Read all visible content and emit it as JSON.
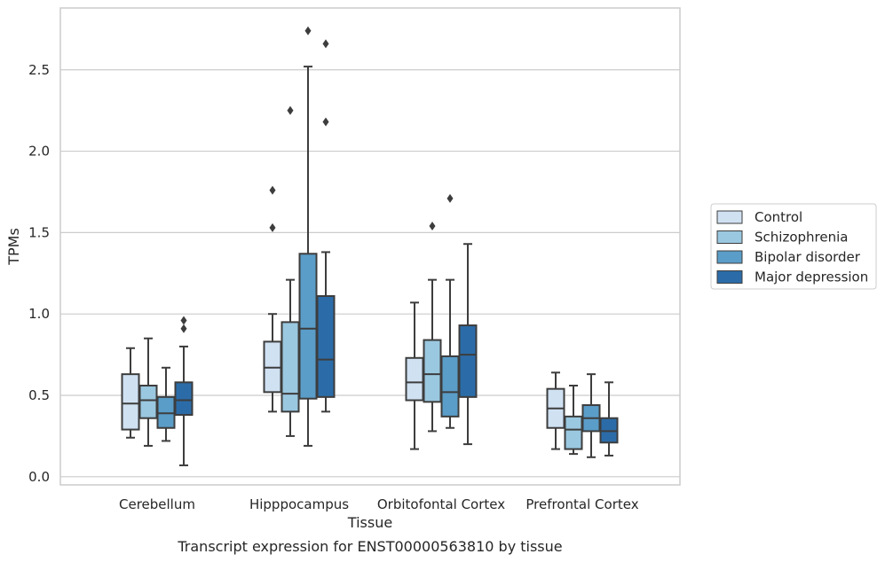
{
  "chart_data": {
    "type": "boxplot",
    "caption": "Transcript expression for ENST00000563810 by tissue",
    "xlabel": "Tissue",
    "ylabel": "TPMs",
    "categories": [
      "Cerebellum",
      "Hipppocampus",
      "Orbitofontal Cortex",
      "Prefrontal Cortex"
    ],
    "ylim": [
      -0.05,
      2.88
    ],
    "yticks": [
      0.0,
      0.5,
      1.0,
      1.5,
      2.0,
      2.5
    ],
    "ytick_labels": [
      "0.0",
      "0.5",
      "1.0",
      "1.5",
      "2.0",
      "2.5"
    ],
    "grid": "horizontal",
    "legend_position": "right-outside",
    "series": [
      {
        "name": "Control",
        "color": "#d0e1f2",
        "boxes": [
          {
            "whisker_low": 0.24,
            "q1": 0.29,
            "median": 0.45,
            "q3": 0.63,
            "whisker_high": 0.79,
            "outliers": []
          },
          {
            "whisker_low": 0.4,
            "q1": 0.52,
            "median": 0.67,
            "q3": 0.83,
            "whisker_high": 1.0,
            "outliers": [
              1.53,
              1.76
            ]
          },
          {
            "whisker_low": 0.17,
            "q1": 0.47,
            "median": 0.58,
            "q3": 0.73,
            "whisker_high": 1.07,
            "outliers": []
          },
          {
            "whisker_low": 0.17,
            "q1": 0.3,
            "median": 0.42,
            "q3": 0.54,
            "whisker_high": 0.64,
            "outliers": []
          }
        ]
      },
      {
        "name": "Schizophrenia",
        "color": "#9ac8e0",
        "boxes": [
          {
            "whisker_low": 0.19,
            "q1": 0.36,
            "median": 0.47,
            "q3": 0.56,
            "whisker_high": 0.85,
            "outliers": []
          },
          {
            "whisker_low": 0.25,
            "q1": 0.4,
            "median": 0.51,
            "q3": 0.95,
            "whisker_high": 1.21,
            "outliers": [
              2.25
            ]
          },
          {
            "whisker_low": 0.28,
            "q1": 0.46,
            "median": 0.63,
            "q3": 0.84,
            "whisker_high": 1.21,
            "outliers": [
              1.54
            ]
          },
          {
            "whisker_low": 0.14,
            "q1": 0.17,
            "median": 0.29,
            "q3": 0.37,
            "whisker_high": 0.56,
            "outliers": []
          }
        ]
      },
      {
        "name": "Bipolar disorder",
        "color": "#5a9dc8",
        "boxes": [
          {
            "whisker_low": 0.22,
            "q1": 0.3,
            "median": 0.39,
            "q3": 0.49,
            "whisker_high": 0.67,
            "outliers": []
          },
          {
            "whisker_low": 0.19,
            "q1": 0.48,
            "median": 0.91,
            "q3": 1.37,
            "whisker_high": 2.52,
            "outliers": [
              2.74
            ]
          },
          {
            "whisker_low": 0.3,
            "q1": 0.37,
            "median": 0.52,
            "q3": 0.74,
            "whisker_high": 1.21,
            "outliers": [
              1.71
            ]
          },
          {
            "whisker_low": 0.12,
            "q1": 0.28,
            "median": 0.36,
            "q3": 0.44,
            "whisker_high": 0.63,
            "outliers": []
          }
        ]
      },
      {
        "name": "Major depression",
        "color": "#2b6ca8",
        "boxes": [
          {
            "whisker_low": 0.07,
            "q1": 0.38,
            "median": 0.47,
            "q3": 0.58,
            "whisker_high": 0.8,
            "outliers": [
              0.91,
              0.96
            ]
          },
          {
            "whisker_low": 0.4,
            "q1": 0.49,
            "median": 0.72,
            "q3": 1.11,
            "whisker_high": 1.38,
            "outliers": [
              2.18,
              2.66
            ]
          },
          {
            "whisker_low": 0.2,
            "q1": 0.49,
            "median": 0.75,
            "q3": 0.93,
            "whisker_high": 1.43,
            "outliers": []
          },
          {
            "whisker_low": 0.13,
            "q1": 0.21,
            "median": 0.28,
            "q3": 0.36,
            "whisker_high": 0.58,
            "outliers": []
          }
        ]
      }
    ]
  }
}
